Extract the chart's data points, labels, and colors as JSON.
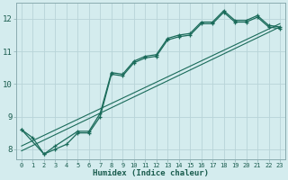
{
  "xlabel": "Humidex (Indice chaleur)",
  "background_color": "#d4ecee",
  "grid_color": "#b8d4d8",
  "line_color": "#1a6b5a",
  "x_min": -0.5,
  "x_max": 23.5,
  "y_min": 7.7,
  "y_max": 12.5,
  "series1_x": [
    0,
    1,
    2,
    3,
    4,
    5,
    6,
    7,
    8,
    9,
    10,
    11,
    12,
    13,
    14,
    15,
    16,
    17,
    18,
    19,
    20,
    21,
    22,
    23
  ],
  "series1_y": [
    8.6,
    8.35,
    7.85,
    8.0,
    8.15,
    8.5,
    8.5,
    9.0,
    10.3,
    10.25,
    10.65,
    10.8,
    10.85,
    11.35,
    11.45,
    11.5,
    11.85,
    11.85,
    12.2,
    11.9,
    11.9,
    12.05,
    11.75,
    11.7
  ],
  "series2_x": [
    0,
    2,
    3,
    5,
    6,
    7,
    8,
    9,
    10,
    11,
    12,
    13,
    14,
    15,
    16,
    17,
    18,
    19,
    20,
    21,
    22,
    23
  ],
  "series2_y": [
    8.6,
    7.85,
    8.1,
    8.55,
    8.55,
    9.1,
    10.35,
    10.3,
    10.7,
    10.85,
    10.9,
    11.4,
    11.5,
    11.55,
    11.9,
    11.9,
    12.25,
    11.95,
    11.95,
    12.1,
    11.8,
    11.75
  ],
  "trend1_x": [
    0,
    23
  ],
  "trend1_y": [
    7.95,
    11.75
  ],
  "trend2_x": [
    0,
    23
  ],
  "trend2_y": [
    8.1,
    11.85
  ],
  "yticks": [
    8,
    9,
    10,
    11,
    12
  ],
  "xtick_positions": [
    0,
    1,
    2,
    3,
    4,
    5,
    6,
    7,
    8,
    9,
    10,
    11,
    12,
    13,
    14,
    15,
    16,
    17,
    18,
    19,
    20,
    21,
    22,
    23
  ],
  "xtick_labels": [
    "0",
    "1",
    "2",
    "3",
    "4",
    "5",
    "6",
    "7",
    "8",
    "9",
    "10",
    "11",
    "12",
    "13",
    "14",
    "15",
    "16",
    "17",
    "18",
    "19",
    "20",
    "21",
    "22",
    "23"
  ],
  "font_color": "#1a5c4e"
}
